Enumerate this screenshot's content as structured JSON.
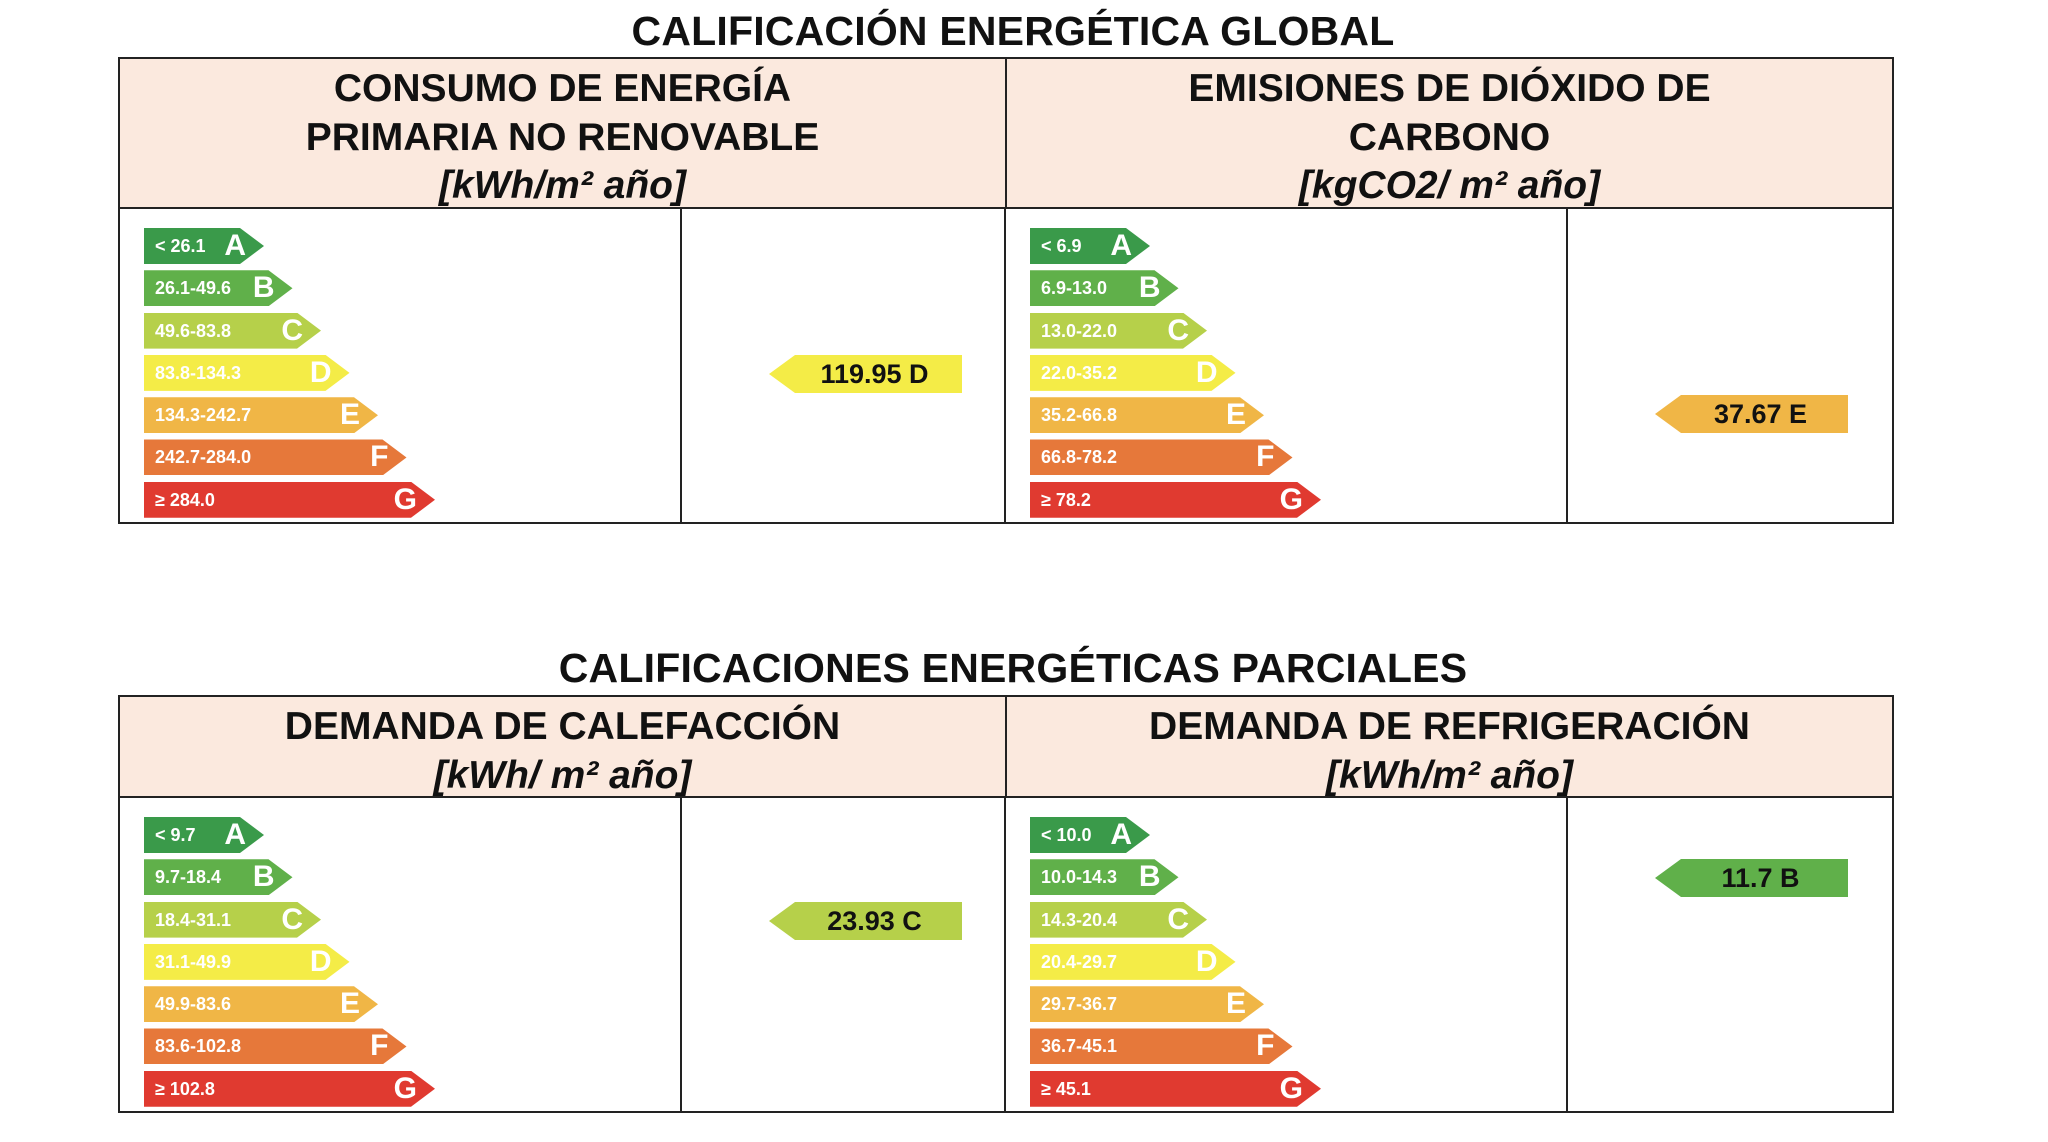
{
  "global_title": "CALIFICACIÓN ENERGÉTICA GLOBAL",
  "partial_title": "CALIFICACIONES ENERGÉTICAS PARCIALES",
  "colors": {
    "A": "#3a9a4a",
    "B": "#60b04a",
    "C": "#b6d04a",
    "D": "#f4ec47",
    "E": "#f0b646",
    "F": "#e6783a",
    "G": "#e03a30",
    "header_bg": "#fbe9de"
  },
  "panels": {
    "primary_energy": {
      "title_line1": "CONSUMO DE ENERGÍA",
      "title_line2": "PRIMARIA NO RENOVABLE",
      "unit": "[kWh/m² año]",
      "scale": [
        {
          "range": "< 26.1",
          "letter": "A"
        },
        {
          "range": "26.1-49.6",
          "letter": "B"
        },
        {
          "range": "49.6-83.8",
          "letter": "C"
        },
        {
          "range": "83.8-134.3",
          "letter": "D"
        },
        {
          "range": "134.3-242.7",
          "letter": "E"
        },
        {
          "range": "242.7-284.0",
          "letter": "F"
        },
        {
          "range": "≥ 284.0",
          "letter": "G"
        }
      ],
      "value_label": "119.95 D",
      "value_class": "D"
    },
    "co2_emissions": {
      "title_line1": "EMISIONES DE DIÓXIDO DE",
      "title_line2": "CARBONO",
      "unit": "[kgCO2/ m² año]",
      "scale": [
        {
          "range": "< 6.9",
          "letter": "A"
        },
        {
          "range": "6.9-13.0",
          "letter": "B"
        },
        {
          "range": "13.0-22.0",
          "letter": "C"
        },
        {
          "range": "22.0-35.2",
          "letter": "D"
        },
        {
          "range": "35.2-66.8",
          "letter": "E"
        },
        {
          "range": "66.8-78.2",
          "letter": "F"
        },
        {
          "range": "≥ 78.2",
          "letter": "G"
        }
      ],
      "value_label": "37.67 E",
      "value_class": "E"
    },
    "heating_demand": {
      "title_line1": "DEMANDA DE CALEFACCIÓN",
      "unit": "[kWh/ m² año]",
      "scale": [
        {
          "range": "< 9.7",
          "letter": "A"
        },
        {
          "range": "9.7-18.4",
          "letter": "B"
        },
        {
          "range": "18.4-31.1",
          "letter": "C"
        },
        {
          "range": "31.1-49.9",
          "letter": "D"
        },
        {
          "range": "49.9-83.6",
          "letter": "E"
        },
        {
          "range": "83.6-102.8",
          "letter": "F"
        },
        {
          "range": "≥ 102.8",
          "letter": "G"
        }
      ],
      "value_label": "23.93 C",
      "value_class": "C"
    },
    "cooling_demand": {
      "title_line1": "DEMANDA DE REFRIGERACIÓN",
      "unit": "[kWh/m² año]",
      "scale": [
        {
          "range": "< 10.0",
          "letter": "A"
        },
        {
          "range": "10.0-14.3",
          "letter": "B"
        },
        {
          "range": "14.3-20.4",
          "letter": "C"
        },
        {
          "range": "20.4-29.7",
          "letter": "D"
        },
        {
          "range": "29.7-36.7",
          "letter": "E"
        },
        {
          "range": "36.7-45.1",
          "letter": "F"
        },
        {
          "range": "≥ 45.1",
          "letter": "G"
        }
      ],
      "value_label": "11.7 B",
      "value_class": "B"
    }
  }
}
